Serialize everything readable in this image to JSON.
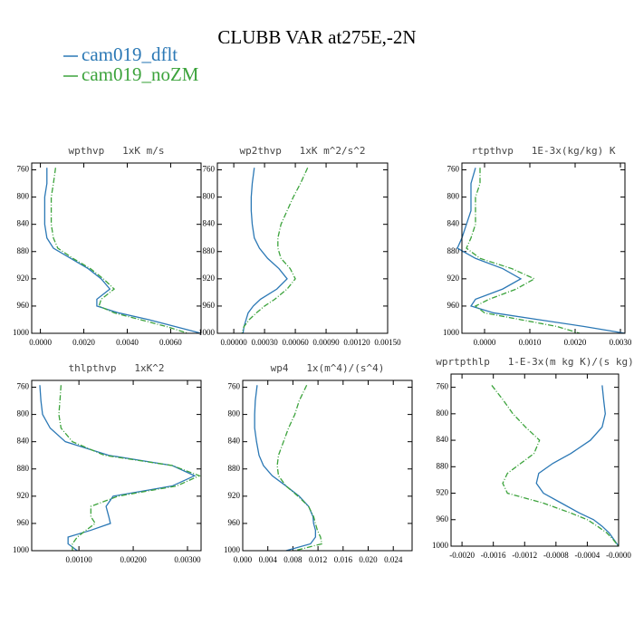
{
  "title": "CLUBB VAR at275E,-2N",
  "chart_data": [
    {
      "type": "line",
      "title": "wpthvp   1xK m/s",
      "y": [
        757,
        780,
        800,
        820,
        840,
        860,
        875,
        890,
        905,
        920,
        935,
        950,
        960,
        970,
        980,
        990,
        1000
      ],
      "ylim": [
        750,
        1000
      ],
      "y_inverted": true,
      "yticks": [
        760,
        800,
        840,
        880,
        920,
        960,
        1000
      ],
      "xlim": [
        -0.0004,
        0.0074
      ],
      "xticks": [
        {
          "value": 0,
          "label": "0.0000"
        },
        {
          "value": 0.002,
          "label": "0.0020"
        },
        {
          "value": 0.004,
          "label": "0.0040"
        },
        {
          "value": 0.006,
          "label": "0.0060"
        }
      ],
      "series": [
        {
          "name": "cam019_dflt",
          "color": "#2b78b5",
          "values": [
            0.0003,
            0.0003,
            0.0002,
            0.0002,
            0.0002,
            0.0003,
            0.0006,
            0.0014,
            0.0022,
            0.0028,
            0.0032,
            0.0026,
            0.0026,
            0.0036,
            0.005,
            0.0062,
            0.0074
          ]
        },
        {
          "name": "cam019_noZM",
          "color": "#3ca33c",
          "values": [
            0.0007,
            0.0006,
            0.0005,
            0.0005,
            0.0005,
            0.0006,
            0.0008,
            0.0015,
            0.0023,
            0.0029,
            0.0034,
            0.0028,
            0.0027,
            0.0034,
            0.0046,
            0.0058,
            0.0068
          ]
        }
      ]
    },
    {
      "type": "line",
      "title": "wp2thvp   1xK m^2/s^2",
      "y": [
        757,
        780,
        800,
        820,
        840,
        860,
        875,
        890,
        905,
        920,
        935,
        950,
        960,
        970,
        980,
        990,
        1000
      ],
      "ylim": [
        750,
        1000
      ],
      "y_inverted": true,
      "yticks": [
        760,
        800,
        840,
        880,
        920,
        960,
        1000
      ],
      "xlim": [
        -0.00016,
        0.0015
      ],
      "xticks": [
        {
          "value": 0,
          "label": "0.00000"
        },
        {
          "value": 0.0003,
          "label": "0.00030"
        },
        {
          "value": 0.0006,
          "label": "0.00060"
        },
        {
          "value": 0.0009,
          "label": "0.00090"
        },
        {
          "value": 0.0012,
          "label": "0.00120"
        },
        {
          "value": 0.0015,
          "label": "0.00150"
        }
      ],
      "series": [
        {
          "name": "cam019_dflt",
          "color": "#2b78b5",
          "values": [
            0.0002,
            0.00018,
            0.00017,
            0.00017,
            0.00018,
            0.0002,
            0.00025,
            0.00033,
            0.00044,
            0.00052,
            0.00042,
            0.00026,
            0.00019,
            0.00014,
            0.00012,
            0.0001,
            9e-05
          ]
        },
        {
          "name": "cam019_noZM",
          "color": "#3ca33c",
          "values": [
            0.00072,
            0.00065,
            0.00058,
            0.00052,
            0.00046,
            0.00043,
            0.00043,
            0.00046,
            0.00055,
            0.0006,
            0.00052,
            0.0004,
            0.0003,
            0.00022,
            0.00015,
            0.0001,
            8e-05
          ]
        }
      ]
    },
    {
      "type": "line",
      "title": "rtpthvp   1E-3x(kg/kg) K",
      "y": [
        757,
        780,
        800,
        820,
        840,
        860,
        875,
        890,
        905,
        920,
        935,
        950,
        960,
        970,
        980,
        990,
        1000
      ],
      "ylim": [
        750,
        1000
      ],
      "y_inverted": true,
      "yticks": [
        760,
        800,
        840,
        880,
        920,
        960,
        1000
      ],
      "xlim": [
        -0.0005,
        0.0031
      ],
      "xticks": [
        {
          "value": 0,
          "label": "0.0000"
        },
        {
          "value": 0.001,
          "label": "0.0010"
        },
        {
          "value": 0.002,
          "label": "0.0020"
        },
        {
          "value": 0.003,
          "label": "0.0030"
        }
      ],
      "series": [
        {
          "name": "cam019_dflt",
          "color": "#2b78b5",
          "values": [
            -0.0002,
            -0.0003,
            -0.0003,
            -0.0003,
            -0.0004,
            -0.0005,
            -0.0006,
            -0.0002,
            0.0004,
            0.0008,
            0.0004,
            -0.0002,
            -0.0003,
            0.0002,
            0.0012,
            0.0022,
            0.0031
          ]
        },
        {
          "name": "cam019_noZM",
          "color": "#3ca33c",
          "values": [
            -0.0001,
            -0.0001,
            -0.0002,
            -0.0002,
            -0.0002,
            -0.0003,
            -0.0004,
            -0.0001,
            0.0006,
            0.0011,
            0.0007,
            0.0001,
            -0.0002,
            0,
            0.0008,
            0.0016,
            0.0021
          ]
        }
      ]
    },
    {
      "type": "line",
      "title": "thlpthvp   1xK^2",
      "y": [
        757,
        780,
        800,
        820,
        840,
        860,
        875,
        890,
        905,
        920,
        935,
        950,
        960,
        970,
        980,
        990,
        1000
      ],
      "ylim": [
        750,
        1000
      ],
      "y_inverted": true,
      "yticks": [
        760,
        800,
        840,
        880,
        920,
        960,
        1000
      ],
      "xlim": [
        0.00013,
        0.00325
      ],
      "xticks": [
        {
          "value": 0.001,
          "label": "0.00100"
        },
        {
          "value": 0.002,
          "label": "0.00200"
        },
        {
          "value": 0.003,
          "label": "0.00300"
        }
      ],
      "series": [
        {
          "name": "cam019_dflt",
          "color": "#2b78b5",
          "values": [
            0.00028,
            0.0003,
            0.00033,
            0.00047,
            0.00075,
            0.00155,
            0.00272,
            0.00313,
            0.00272,
            0.00163,
            0.0015,
            0.00155,
            0.00158,
            0.00122,
            0.0008,
            0.0008,
            0.00097
          ]
        },
        {
          "name": "cam019_noZM",
          "color": "#3ca33c",
          "values": [
            0.00067,
            0.00065,
            0.00063,
            0.00067,
            0.00088,
            0.00147,
            0.00272,
            0.00322,
            0.0028,
            0.00172,
            0.00122,
            0.00122,
            0.0013,
            0.00113,
            0.00097,
            0.00088,
            0.00088
          ]
        }
      ]
    },
    {
      "type": "line",
      "title": "wp4   1x(m^4)/(s^4)",
      "y": [
        757,
        780,
        800,
        820,
        840,
        860,
        875,
        890,
        905,
        920,
        935,
        950,
        960,
        970,
        980,
        990,
        1000
      ],
      "ylim": [
        750,
        1000
      ],
      "y_inverted": true,
      "yticks": [
        760,
        800,
        840,
        880,
        920,
        960,
        1000
      ],
      "xlim": [
        0,
        0.027
      ],
      "xticks": [
        {
          "value": 0,
          "label": "0.000"
        },
        {
          "value": 0.004,
          "label": "0.004"
        },
        {
          "value": 0.008,
          "label": "0.008"
        },
        {
          "value": 0.012,
          "label": "0.012"
        },
        {
          "value": 0.016,
          "label": "0.016"
        },
        {
          "value": 0.02,
          "label": "0.020"
        },
        {
          "value": 0.024,
          "label": "0.024"
        }
      ],
      "series": [
        {
          "name": "cam019_dflt",
          "color": "#2b78b5",
          "values": [
            0.0023,
            0.002,
            0.0019,
            0.0019,
            0.0022,
            0.0026,
            0.0033,
            0.0047,
            0.0069,
            0.009,
            0.0105,
            0.0112,
            0.0113,
            0.0116,
            0.0116,
            0.0108,
            0.0069
          ]
        },
        {
          "name": "cam019_noZM",
          "color": "#3ca33c",
          "values": [
            0.0102,
            0.009,
            0.0083,
            0.0073,
            0.0065,
            0.0057,
            0.0055,
            0.0057,
            0.0069,
            0.0088,
            0.0105,
            0.0113,
            0.0116,
            0.0119,
            0.0124,
            0.0126,
            0.0083
          ]
        }
      ]
    },
    {
      "type": "line",
      "title": "wprtpthlp   1-E-3x(m kg K)/(s kg)",
      "y": [
        757,
        780,
        800,
        820,
        840,
        860,
        875,
        890,
        905,
        920,
        935,
        950,
        960,
        970,
        980,
        990,
        1000
      ],
      "ylim": [
        740,
        1000
      ],
      "y_inverted": true,
      "yticks": [
        760,
        800,
        840,
        880,
        920,
        960,
        1000
      ],
      "xlim": [
        -0.00214,
        0
      ],
      "xticks": [
        {
          "value": -0.002,
          "label": "-0.0020"
        },
        {
          "value": -0.0016,
          "label": "-0.0016"
        },
        {
          "value": -0.0012,
          "label": "-0.0012"
        },
        {
          "value": -0.0008,
          "label": "-0.0008"
        },
        {
          "value": -0.0004,
          "label": "-0.0004"
        },
        {
          "value": 0,
          "label": "-0.0000"
        }
      ],
      "series": [
        {
          "name": "cam019_dflt",
          "color": "#2b78b5",
          "values": [
            -0.00021,
            -0.00019,
            -0.00017,
            -0.00021,
            -0.00036,
            -0.00061,
            -0.00084,
            -0.00102,
            -0.00105,
            -0.00096,
            -0.00073,
            -0.0005,
            -0.00032,
            -0.00021,
            -0.00012,
            -6e-05,
            0
          ]
        },
        {
          "name": "cam019_noZM",
          "color": "#3ca33c",
          "values": [
            -0.00162,
            -0.00147,
            -0.00135,
            -0.00119,
            -0.00101,
            -0.00108,
            -0.00125,
            -0.00142,
            -0.00148,
            -0.00142,
            -0.00096,
            -0.00061,
            -0.0004,
            -0.00027,
            -0.00015,
            -7e-05,
            0
          ]
        }
      ]
    }
  ]
}
